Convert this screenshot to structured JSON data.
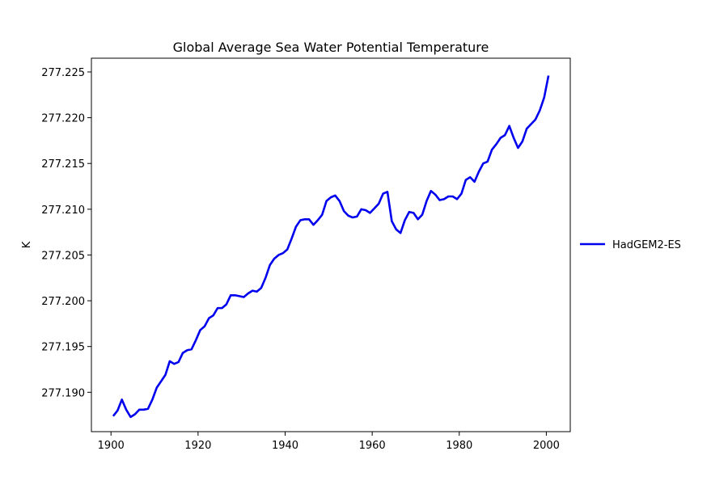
{
  "chart_data": {
    "type": "line",
    "title": "Global Average Sea Water Potential Temperature",
    "xlabel": "",
    "ylabel": "K",
    "xlim": [
      1895.5,
      2005.5
    ],
    "ylim": [
      277.1857,
      277.2265
    ],
    "xticks": [
      1900,
      1920,
      1940,
      1960,
      1980,
      2000
    ],
    "yticks": [
      277.19,
      277.195,
      277.2,
      277.205,
      277.21,
      277.215,
      277.22,
      277.225
    ],
    "ytick_labels": [
      "277.190",
      "277.195",
      "277.200",
      "277.205",
      "277.210",
      "277.215",
      "277.220",
      "277.225"
    ],
    "grid": false,
    "legend_position": "outside-right",
    "series": [
      {
        "name": "HadGEM2-ES",
        "color": "#0000ee",
        "x": [
          1900.5,
          1901.5,
          1902.5,
          1903.5,
          1904.5,
          1905.5,
          1906.5,
          1907.5,
          1908.5,
          1909.5,
          1910.5,
          1911.5,
          1912.5,
          1913.5,
          1914.5,
          1915.5,
          1916.5,
          1917.5,
          1918.5,
          1919.5,
          1920.5,
          1921.5,
          1922.5,
          1923.5,
          1924.5,
          1925.5,
          1926.5,
          1927.5,
          1928.5,
          1929.5,
          1930.5,
          1931.5,
          1932.5,
          1933.5,
          1934.5,
          1935.5,
          1936.5,
          1937.5,
          1938.5,
          1939.5,
          1940.5,
          1941.5,
          1942.5,
          1943.5,
          1944.5,
          1945.5,
          1946.5,
          1947.5,
          1948.5,
          1949.5,
          1950.5,
          1951.5,
          1952.5,
          1953.5,
          1954.5,
          1955.5,
          1956.5,
          1957.5,
          1958.5,
          1959.5,
          1960.5,
          1961.5,
          1962.5,
          1963.5,
          1964.5,
          1965.5,
          1966.5,
          1967.5,
          1968.5,
          1969.5,
          1970.5,
          1971.5,
          1972.5,
          1973.5,
          1974.5,
          1975.5,
          1976.5,
          1977.5,
          1978.5,
          1979.5,
          1980.5,
          1981.5,
          1982.5,
          1983.5,
          1984.5,
          1985.5,
          1986.5,
          1987.5,
          1988.5,
          1989.5,
          1990.5,
          1991.5,
          1992.5,
          1993.5,
          1994.5,
          1995.5,
          1996.5,
          1997.5,
          1998.5,
          1999.5,
          2000.5
        ],
        "values": [
          277.1874,
          277.188,
          277.1892,
          277.1881,
          277.1873,
          277.1876,
          277.1881,
          277.1881,
          277.1882,
          277.1892,
          277.1905,
          277.1912,
          277.1919,
          277.1934,
          277.1931,
          277.1933,
          277.1943,
          277.1946,
          277.1947,
          277.1957,
          277.1968,
          277.1972,
          277.1981,
          277.1984,
          277.1992,
          277.1992,
          277.1996,
          277.2006,
          277.2006,
          277.2005,
          277.2004,
          277.2008,
          277.2011,
          277.201,
          277.2014,
          277.2025,
          277.2039,
          277.2046,
          277.205,
          277.2052,
          277.2056,
          277.2068,
          277.2081,
          277.2088,
          277.2089,
          277.2089,
          277.2083,
          277.2088,
          277.2094,
          277.2109,
          277.2113,
          277.2115,
          277.2109,
          277.2098,
          277.2093,
          277.2091,
          277.2092,
          277.21,
          277.2099,
          277.2096,
          277.2101,
          277.2106,
          277.2117,
          277.2119,
          277.2087,
          277.2078,
          277.2074,
          277.2088,
          277.2097,
          277.2096,
          277.2089,
          277.2094,
          277.2109,
          277.212,
          277.2116,
          277.211,
          277.2111,
          277.2114,
          277.2114,
          277.2111,
          277.2117,
          277.2132,
          277.2135,
          277.213,
          277.2141,
          277.215,
          277.2152,
          277.2165,
          277.2171,
          277.2178,
          277.2181,
          277.2191,
          277.2178,
          277.2167,
          277.2174,
          277.2188,
          277.2193,
          277.2198,
          277.2208,
          277.2222,
          277.2246
        ]
      }
    ]
  }
}
